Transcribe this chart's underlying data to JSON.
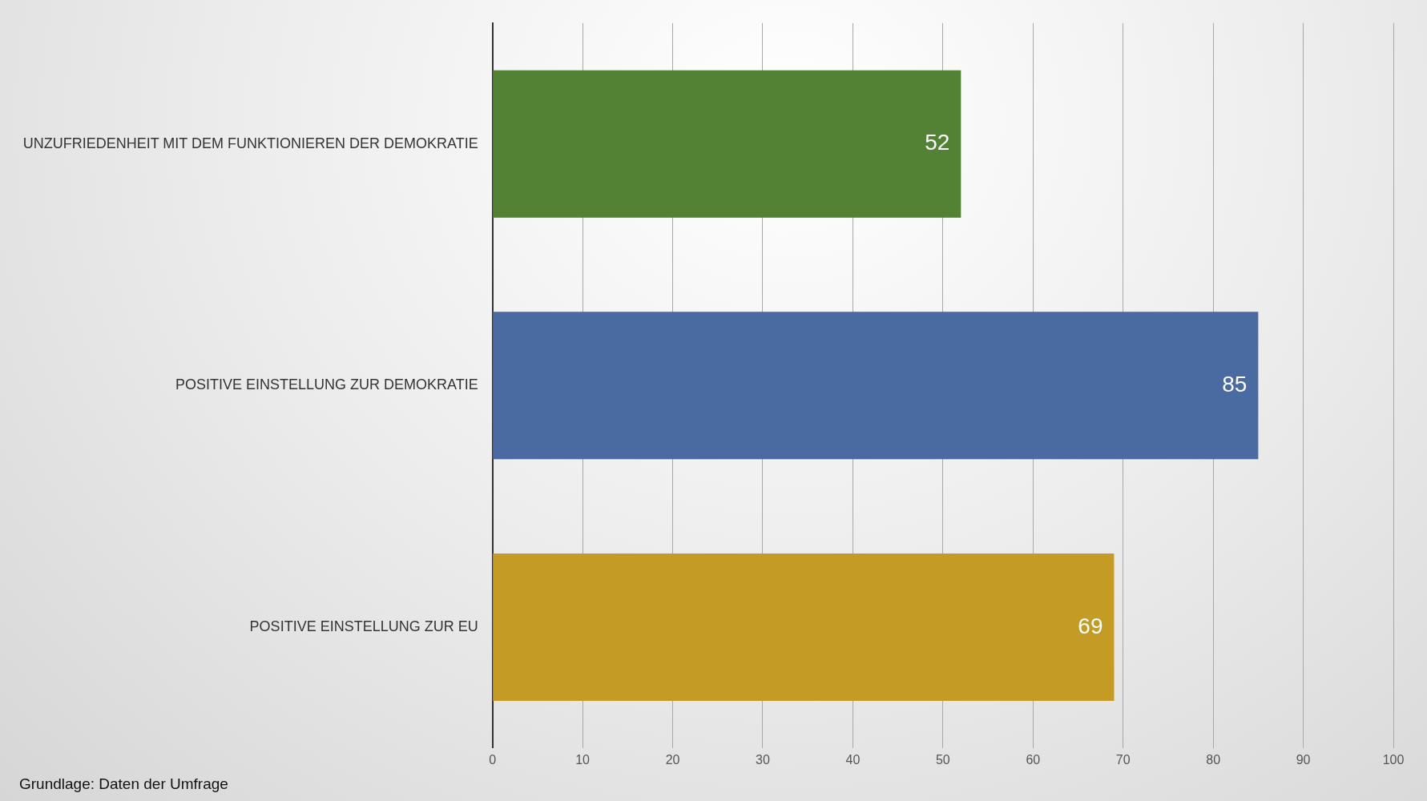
{
  "chart_data": {
    "type": "bar",
    "orientation": "horizontal",
    "categories": [
      "UNZUFRIEDENHEIT MIT DEM FUNKTIONIEREN DER DEMOKRATIE",
      "POSITIVE EINSTELLUNG ZUR DEMOKRATIE",
      "POSITIVE EINSTELLUNG ZUR EU"
    ],
    "values": [
      52,
      85,
      69
    ],
    "colors": [
      "#548235",
      "#4a6aa2",
      "#c49b24"
    ],
    "xlim": [
      0,
      100
    ],
    "xticks": [
      0,
      10,
      20,
      30,
      40,
      50,
      60,
      70,
      80,
      90,
      100
    ],
    "grid": "x",
    "data_labels": true,
    "legend": false,
    "annotations": [
      "Grundlage: Daten der Umfrage"
    ]
  }
}
